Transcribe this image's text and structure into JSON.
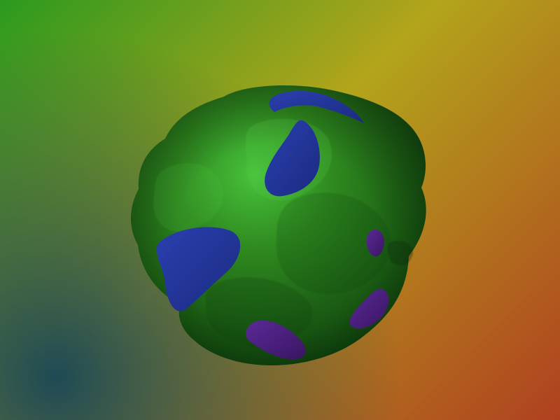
{
  "scene": {
    "background_colors": {
      "top_left": "#2a9a1f",
      "top_right": "#b3a41b",
      "bottom_left": "#1f4a55",
      "bottom_right": "#b04020"
    },
    "blob": {
      "surface_color": "#2f8a1f",
      "shadow_color": "#0b3a0b",
      "highlight_color": "#47c23b"
    },
    "spots": {
      "blue_color": "#2b3fb0",
      "purple_color": "#5a2a98"
    }
  }
}
